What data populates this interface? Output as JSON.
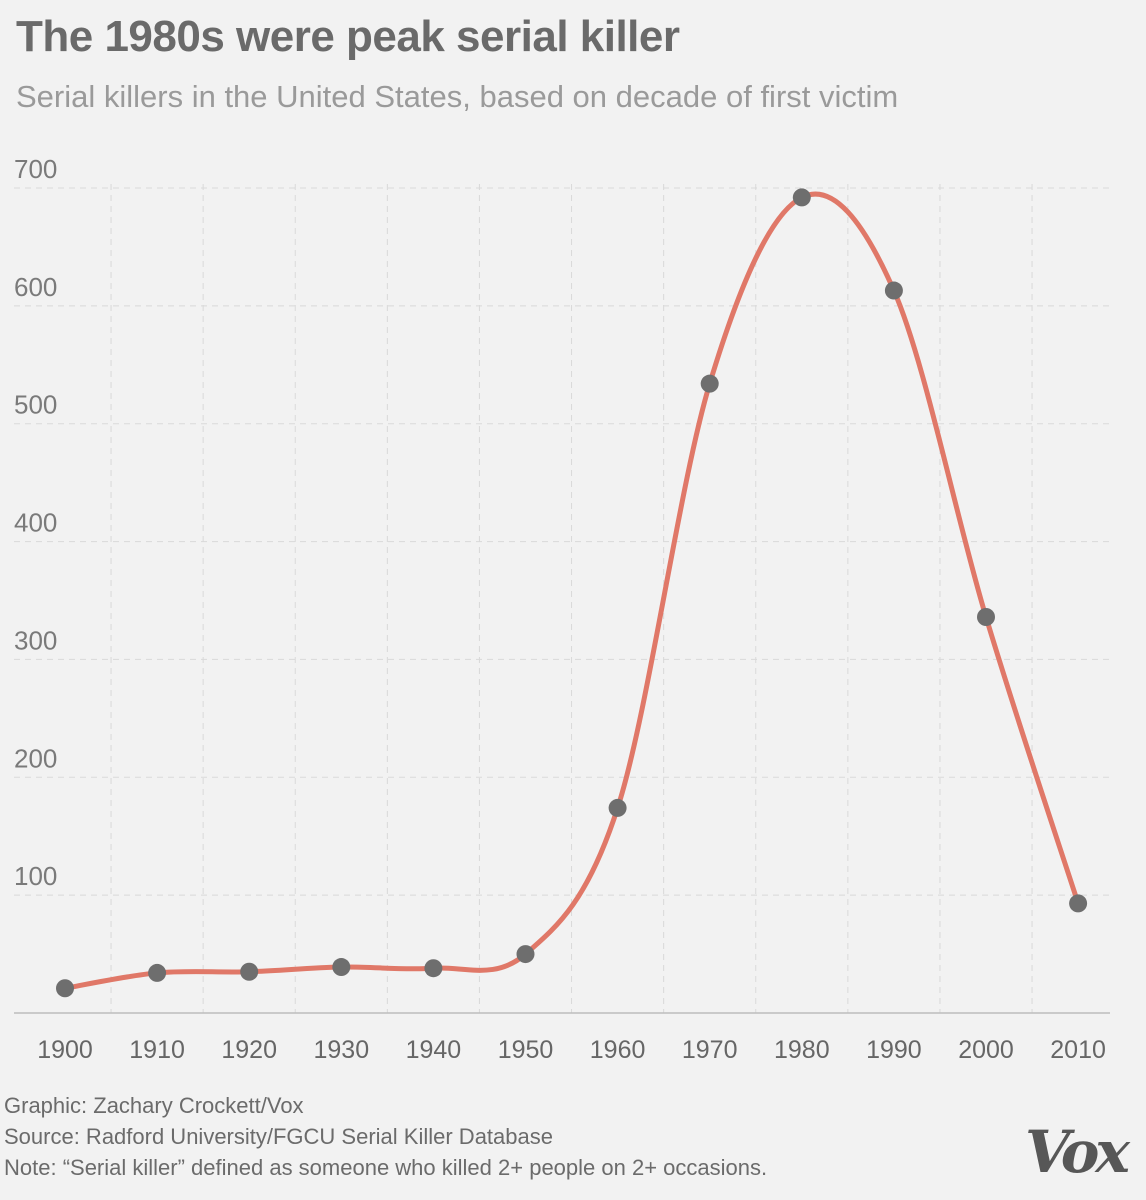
{
  "title": "The 1980s were peak serial killer",
  "subtitle": "Serial killers in the United States, based on decade of first victim",
  "chart_data": {
    "type": "line",
    "x": [
      "1900",
      "1910",
      "1920",
      "1930",
      "1940",
      "1950",
      "1960",
      "1970",
      "1980",
      "1990",
      "2000",
      "2010"
    ],
    "values": [
      21,
      34,
      35,
      39,
      38,
      50,
      174,
      534,
      692,
      613,
      336,
      93
    ],
    "yticks": [
      "100",
      "200",
      "300",
      "400",
      "500",
      "600",
      "700"
    ],
    "ylim": [
      0,
      700
    ],
    "grid": true,
    "line_color": "#e07868",
    "point_color": "#6e6e6e"
  },
  "footer": {
    "credit": "Graphic: Zachary Crockett/Vox",
    "source": "Source: Radford University/FGCU Serial Killer Database",
    "note": "Note: “Serial killer” defined as someone who killed 2+ people on 2+ occasions."
  },
  "logo_text": "Vox"
}
